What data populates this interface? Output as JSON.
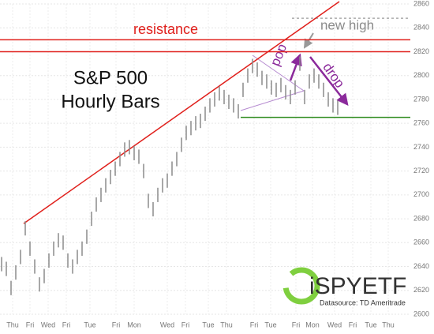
{
  "chart_data": {
    "type": "range_bars",
    "title": "S&P 500",
    "subtitle": "Hourly Bars",
    "annotations": {
      "resistance": "resistance",
      "new_high": "new high",
      "pop": "pop",
      "drop": "drop"
    },
    "logo": "iSPYETF",
    "source": "Datasource: TD Ameritrade",
    "color": "#8a8a8a",
    "grid": true,
    "xlim": [
      0,
      520
    ],
    "ylim": [
      2600,
      2860
    ],
    "yticks": [
      2600,
      2620,
      2640,
      2660,
      2680,
      2700,
      2720,
      2740,
      2760,
      2780,
      2800,
      2820,
      2840,
      2860
    ],
    "xticks": [
      {
        "value": 16,
        "label": "Thu"
      },
      {
        "value": 38,
        "label": "Fri"
      },
      {
        "value": 61,
        "label": "Wed"
      },
      {
        "value": 84,
        "label": "Fri"
      },
      {
        "value": 114,
        "label": "Tue"
      },
      {
        "value": 147,
        "label": "Fri"
      },
      {
        "value": 170,
        "label": "Mon"
      },
      {
        "value": 212,
        "label": "Wed"
      },
      {
        "value": 235,
        "label": "Fri"
      },
      {
        "value": 264,
        "label": "Tue"
      },
      {
        "value": 287,
        "label": "Thu"
      },
      {
        "value": 322,
        "label": "Fri"
      },
      {
        "value": 343,
        "label": "Tue"
      },
      {
        "value": 375,
        "label": "Fri"
      },
      {
        "value": 396,
        "label": "Mon"
      },
      {
        "value": 424,
        "label": "Wed"
      },
      {
        "value": 447,
        "label": "Fri"
      },
      {
        "value": 470,
        "label": "Tue"
      },
      {
        "value": 492,
        "label": "Thu"
      }
    ],
    "x": [
      2,
      8,
      14,
      20,
      26,
      32,
      38,
      44,
      50,
      56,
      62,
      68,
      74,
      80,
      86,
      92,
      98,
      104,
      110,
      116,
      122,
      128,
      134,
      140,
      146,
      152,
      158,
      164,
      170,
      176,
      182,
      188,
      194,
      200,
      206,
      212,
      218,
      224,
      230,
      236,
      242,
      248,
      254,
      260,
      266,
      272,
      278,
      284,
      290,
      296,
      302,
      308,
      314,
      320,
      326,
      332,
      338,
      344,
      350,
      356,
      362,
      368,
      374,
      380,
      386,
      392,
      398,
      404,
      410,
      416,
      422,
      428
    ],
    "highs": [
      2648,
      2644,
      2628,
      2641,
      2654,
      2678,
      2661,
      2646,
      2631,
      2638,
      2651,
      2661,
      2668,
      2666,
      2651,
      2646,
      2654,
      2661,
      2671,
      2686,
      2698,
      2706,
      2714,
      2721,
      2728,
      2736,
      2744,
      2746,
      2741,
      2738,
      2726,
      2701,
      2694,
      2706,
      2714,
      2718,
      2728,
      2736,
      2748,
      2758,
      2762,
      2766,
      2768,
      2774,
      2781,
      2786,
      2791,
      2788,
      2784,
      2781,
      2776,
      2794,
      2806,
      2814,
      2811,
      2804,
      2801,
      2796,
      2794,
      2798,
      2792,
      2788,
      2796,
      2816,
      2788,
      2801,
      2806,
      2801,
      2794,
      2786,
      2781,
      2779
    ],
    "lows": [
      2636,
      2632,
      2616,
      2629,
      2642,
      2666,
      2649,
      2634,
      2619,
      2626,
      2639,
      2649,
      2656,
      2654,
      2639,
      2634,
      2642,
      2649,
      2659,
      2674,
      2686,
      2694,
      2702,
      2709,
      2716,
      2724,
      2732,
      2734,
      2729,
      2726,
      2714,
      2689,
      2682,
      2694,
      2702,
      2706,
      2716,
      2724,
      2736,
      2746,
      2750,
      2754,
      2756,
      2762,
      2769,
      2774,
      2779,
      2776,
      2772,
      2769,
      2764,
      2782,
      2794,
      2802,
      2799,
      2792,
      2789,
      2784,
      2782,
      2786,
      2780,
      2776,
      2784,
      2804,
      2776,
      2789,
      2794,
      2789,
      2782,
      2774,
      2769,
      2767
    ],
    "hlines": [
      {
        "value": 2830,
        "color": "#e0201c",
        "x_start": 0
      },
      {
        "value": 2820,
        "color": "#e0201c",
        "x_start": 0
      },
      {
        "value": 2765,
        "color": "#2e8b1e",
        "x_start": 305
      },
      {
        "value": 2848,
        "color": "#aaaaaa",
        "x_start": 370
      }
    ],
    "trendline": {
      "x": [
        30,
        430
      ],
      "y": [
        2676,
        2862
      ],
      "color": "#e0201c"
    }
  }
}
